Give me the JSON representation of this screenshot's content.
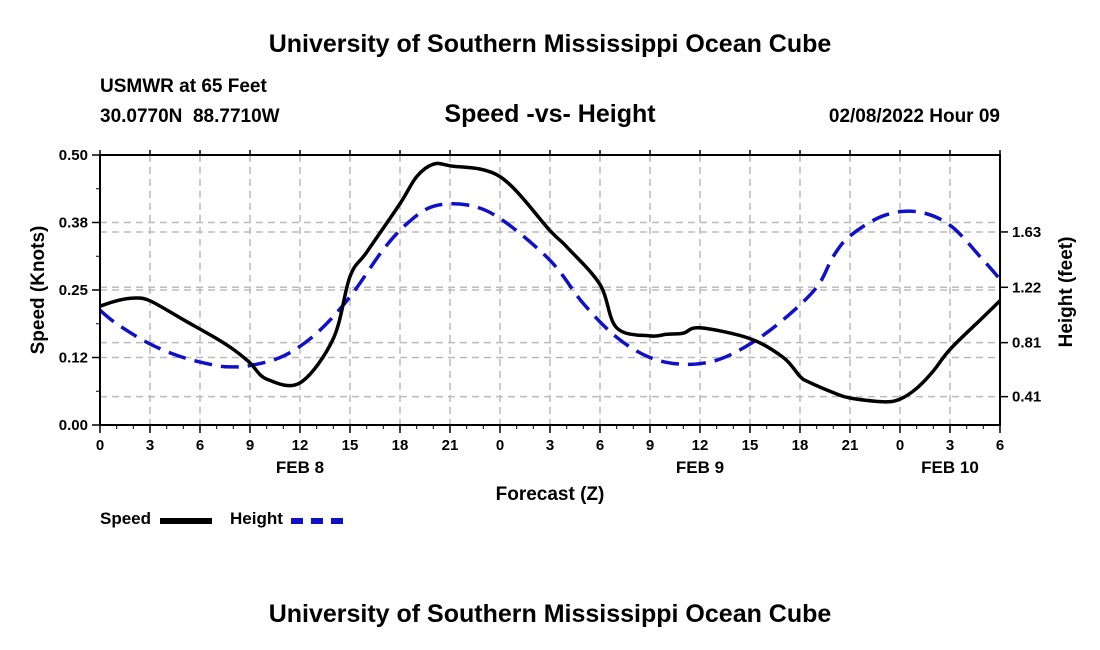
{
  "header": {
    "title": "University of Southern Mississippi Ocean Cube",
    "station": "USMWR at 65 Feet",
    "coords": "30.0770N  88.7710W",
    "subtitle": "Speed -vs- Height",
    "datetime": "02/08/2022 Hour 09"
  },
  "footer": {
    "title": "University of Southern Mississippi Ocean Cube"
  },
  "colors": {
    "speed": "#000000",
    "height": "#1010c8",
    "grid": "#bbbbbb"
  },
  "legend": {
    "speed_label": "Speed",
    "height_label": "Height"
  },
  "chart_data": {
    "type": "line",
    "title": "Speed -vs- Height",
    "xlabel": "Forecast (Z)",
    "ylabel_left": "Speed (Knots)",
    "ylabel_right": "Height (feet)",
    "x_unit": "hours from 00Z Feb 8",
    "xlim": [
      0,
      54
    ],
    "x_ticks": [
      0,
      3,
      6,
      9,
      12,
      15,
      18,
      21,
      24,
      27,
      30,
      33,
      36,
      39,
      42,
      45,
      48,
      51,
      54
    ],
    "x_tick_labels": [
      "0",
      "3",
      "6",
      "9",
      "12",
      "15",
      "18",
      "21",
      "0",
      "3",
      "6",
      "9",
      "12",
      "15",
      "18",
      "21",
      "0",
      "3",
      "6"
    ],
    "date_labels": [
      {
        "x": 12,
        "label": "FEB 8"
      },
      {
        "x": 36,
        "label": "FEB 9"
      },
      {
        "x": 51,
        "label": "FEB 10"
      }
    ],
    "ylim_left": [
      0,
      0.5
    ],
    "y_ticks_left": [
      0,
      0.125,
      0.25,
      0.375,
      0.5
    ],
    "y_tick_labels_left": [
      "0.00",
      "0.12",
      "0.25",
      "0.38",
      "0.50"
    ],
    "ylim_right": [
      0.2,
      2.2
    ],
    "y_ticks_right": [
      0.41,
      0.81,
      1.22,
      1.63
    ],
    "y_tick_labels_right": [
      "0.41",
      "0.81",
      "1.22",
      "1.63"
    ],
    "grid": true,
    "series": [
      {
        "name": "Speed",
        "axis": "left",
        "style": "solid",
        "x": [
          0,
          1,
          2,
          3,
          5,
          7,
          8,
          9,
          10,
          12,
          14,
          15,
          16,
          18,
          19,
          20,
          21,
          24,
          27,
          28,
          30,
          31,
          33,
          34,
          35,
          36,
          39,
          41,
          42,
          42.5,
          44,
          45,
          47,
          48,
          49,
          50,
          51,
          53,
          54
        ],
        "y": [
          0.22,
          0.23,
          0.235,
          0.23,
          0.195,
          0.16,
          0.14,
          0.115,
          0.085,
          0.078,
          0.16,
          0.275,
          0.32,
          0.41,
          0.46,
          0.483,
          0.48,
          0.46,
          0.36,
          0.33,
          0.26,
          0.18,
          0.165,
          0.168,
          0.17,
          0.18,
          0.16,
          0.125,
          0.09,
          0.08,
          0.06,
          0.05,
          0.043,
          0.048,
          0.068,
          0.1,
          0.14,
          0.2,
          0.23
        ]
      },
      {
        "name": "Height",
        "axis": "right",
        "style": "dashed",
        "x": [
          0,
          1,
          3,
          5,
          7,
          8,
          9,
          11,
          13,
          15,
          17,
          18.5,
          20,
          22,
          24,
          27,
          29,
          31,
          33,
          35,
          37,
          39,
          41,
          43,
          44,
          45,
          47,
          49,
          51,
          53,
          54
        ],
        "y": [
          1.05,
          0.95,
          0.8,
          0.7,
          0.64,
          0.63,
          0.64,
          0.71,
          0.88,
          1.15,
          1.5,
          1.7,
          1.82,
          1.83,
          1.73,
          1.42,
          1.1,
          0.85,
          0.7,
          0.65,
          0.68,
          0.8,
          0.98,
          1.22,
          1.45,
          1.6,
          1.75,
          1.78,
          1.68,
          1.42,
          1.28
        ]
      }
    ]
  }
}
